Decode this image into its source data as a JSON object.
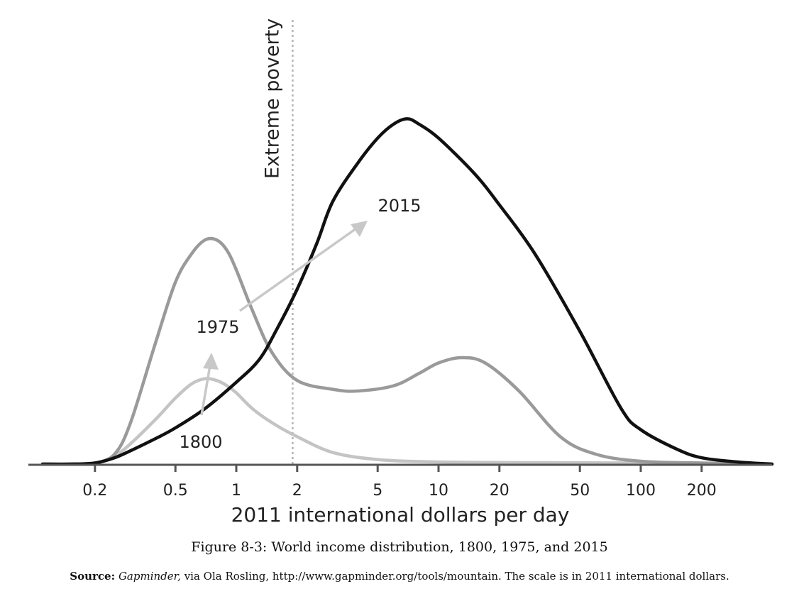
{
  "chart_data": {
    "type": "line",
    "title": "",
    "xlabel": "2011 international dollars per day",
    "ylabel": "",
    "xscale": "log",
    "xlim": [
      0.08,
      800
    ],
    "ylim": [
      0,
      1.0
    ],
    "x_ticks": [
      {
        "value": 0.2,
        "label": "0.2"
      },
      {
        "value": 0.5,
        "label": "0.5"
      },
      {
        "value": 1,
        "label": "1"
      },
      {
        "value": 2,
        "label": "2"
      },
      {
        "value": 5,
        "label": "5"
      },
      {
        "value": 10,
        "label": "10"
      },
      {
        "value": 20,
        "label": "20"
      },
      {
        "value": 50,
        "label": "50"
      },
      {
        "value": 100,
        "label": "100"
      },
      {
        "value": 200,
        "label": "200"
      }
    ],
    "reference_line": {
      "x": 1.9,
      "label": "Extreme poverty",
      "style": "dotted"
    },
    "series": [
      {
        "name": "1800",
        "label": "1800",
        "color": "#c4c4c4",
        "x": [
          0.08,
          0.15,
          0.2,
          0.25,
          0.3,
          0.4,
          0.5,
          0.6,
          0.7,
          0.8,
          0.9,
          1.0,
          1.2,
          1.5,
          2.0,
          3,
          5,
          10,
          30,
          100,
          300,
          800
        ],
        "values": [
          0.0,
          0.0,
          0.005,
          0.025,
          0.06,
          0.13,
          0.19,
          0.23,
          0.245,
          0.24,
          0.225,
          0.205,
          0.16,
          0.12,
          0.08,
          0.035,
          0.015,
          0.008,
          0.006,
          0.005,
          0.003,
          0.0
        ]
      },
      {
        "name": "1975",
        "label": "1975",
        "color": "#9a9a9a",
        "x": [
          0.08,
          0.15,
          0.2,
          0.25,
          0.3,
          0.4,
          0.5,
          0.6,
          0.7,
          0.8,
          0.9,
          1.0,
          1.2,
          1.5,
          2.0,
          3,
          4,
          6,
          8,
          10,
          13,
          17,
          25,
          40,
          60,
          100,
          200,
          800
        ],
        "values": [
          0.0,
          0.0,
          0.005,
          0.03,
          0.12,
          0.35,
          0.52,
          0.6,
          0.64,
          0.64,
          0.61,
          0.555,
          0.44,
          0.32,
          0.24,
          0.215,
          0.21,
          0.225,
          0.26,
          0.29,
          0.305,
          0.29,
          0.21,
          0.08,
          0.03,
          0.01,
          0.005,
          0.0
        ]
      },
      {
        "name": "2015",
        "label": "2015",
        "color": "#111111",
        "x": [
          0.08,
          0.15,
          0.2,
          0.25,
          0.3,
          0.4,
          0.5,
          0.7,
          1.0,
          1.3,
          1.6,
          2.0,
          2.5,
          3.0,
          4.0,
          5.0,
          6.0,
          7.0,
          8.0,
          10,
          15,
          20,
          30,
          50,
          80,
          100,
          150,
          200,
          300,
          800
        ],
        "values": [
          0.0,
          0.0,
          0.005,
          0.02,
          0.04,
          0.075,
          0.105,
          0.16,
          0.235,
          0.3,
          0.39,
          0.5,
          0.63,
          0.75,
          0.86,
          0.93,
          0.97,
          0.985,
          0.97,
          0.93,
          0.83,
          0.74,
          0.6,
          0.38,
          0.16,
          0.1,
          0.045,
          0.02,
          0.008,
          0.0
        ]
      }
    ]
  },
  "caption": "Figure 8-3: World income distribution, 1800, 1975, and 2015",
  "source": {
    "label": "Source:",
    "name": "Gapminder,",
    "text": " via Ola Rosling, http://www.gapminder.org/tools/mountain. The scale is in 2011 international dollars."
  }
}
